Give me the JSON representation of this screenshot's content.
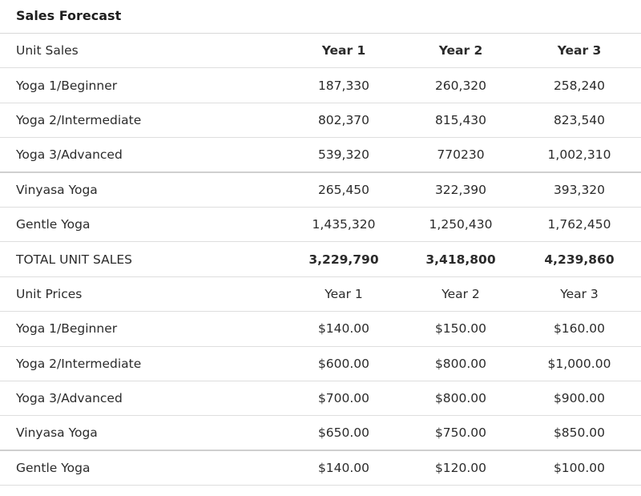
{
  "title": "Sales Forecast",
  "unit_sales": {
    "header": {
      "label": "Unit Sales",
      "y1": "Year 1",
      "y2": "Year 2",
      "y3": "Year 3"
    },
    "rows": [
      {
        "label": "Yoga 1/Beginner",
        "y1": "187,330",
        "y2": "260,320",
        "y3": "258,240"
      },
      {
        "label": "Yoga 2/Intermediate",
        "y1": "802,370",
        "y2": "815,430",
        "y3": "823,540"
      },
      {
        "label": "Yoga 3/Advanced",
        "y1": "539,320",
        "y2": "770230",
        "y3": "1,002,310"
      },
      {
        "label": "Vinyasa Yoga",
        "y1": "265,450",
        "y2": "322,390",
        "y3": "393,320"
      },
      {
        "label": "Gentle Yoga",
        "y1": "1,435,320",
        "y2": "1,250,430",
        "y3": "1,762,450"
      }
    ],
    "total": {
      "label": "TOTAL UNIT SALES",
      "y1": "3,229,790",
      "y2": "3,418,800",
      "y3": "4,239,860"
    }
  },
  "unit_prices": {
    "header": {
      "label": "Unit Prices",
      "y1": "Year 1",
      "y2": "Year 2",
      "y3": "Year 3"
    },
    "rows": [
      {
        "label": "Yoga 1/Beginner",
        "y1": "$140.00",
        "y2": "$150.00",
        "y3": "$160.00"
      },
      {
        "label": "Yoga 2/Intermediate",
        "y1": "$600.00",
        "y2": "$800.00",
        "y3": "$1,000.00"
      },
      {
        "label": "Yoga 3/Advanced",
        "y1": "$700.00",
        "y2": "$800.00",
        "y3": "$900.00"
      },
      {
        "label": "Vinyasa Yoga",
        "y1": "$650.00",
        "y2": "$750.00",
        "y3": "$850.00"
      },
      {
        "label": "Gentle Yoga",
        "y1": "$140.00",
        "y2": "$120.00",
        "y3": "$100.00"
      }
    ]
  }
}
